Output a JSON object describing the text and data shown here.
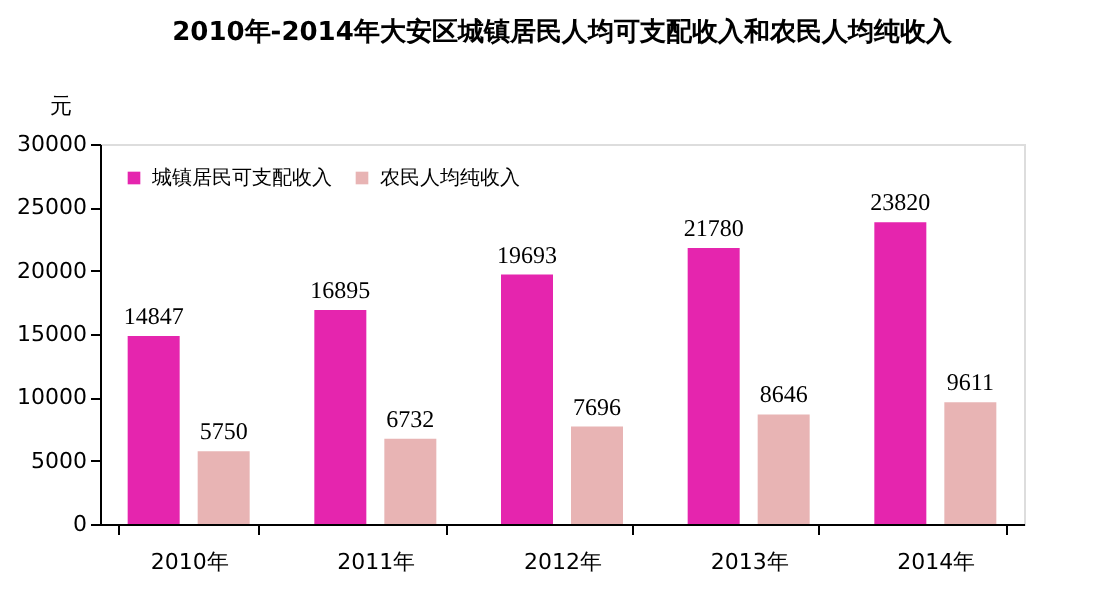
{
  "chart_data": {
    "type": "bar",
    "title": "2010年-2014年大安区城镇居民人均可支配收入和农民人均纯收入",
    "ylabel": "元",
    "categories": [
      "2010年",
      "2011年",
      "2012年",
      "2013年",
      "2014年"
    ],
    "series": [
      {
        "name": "城镇居民可支配收入",
        "color": "#e525ae",
        "values": [
          14847,
          16895,
          19693,
          21780,
          23820
        ]
      },
      {
        "name": "农民人均纯收入",
        "color": "#e8b4b4",
        "values": [
          5750,
          6732,
          7696,
          8646,
          9611
        ]
      }
    ],
    "ylim": [
      0,
      30000
    ],
    "yticks": [
      0,
      5000,
      10000,
      15000,
      20000,
      25000,
      30000
    ],
    "grid": false,
    "legend": "top left",
    "data_labels": true
  }
}
